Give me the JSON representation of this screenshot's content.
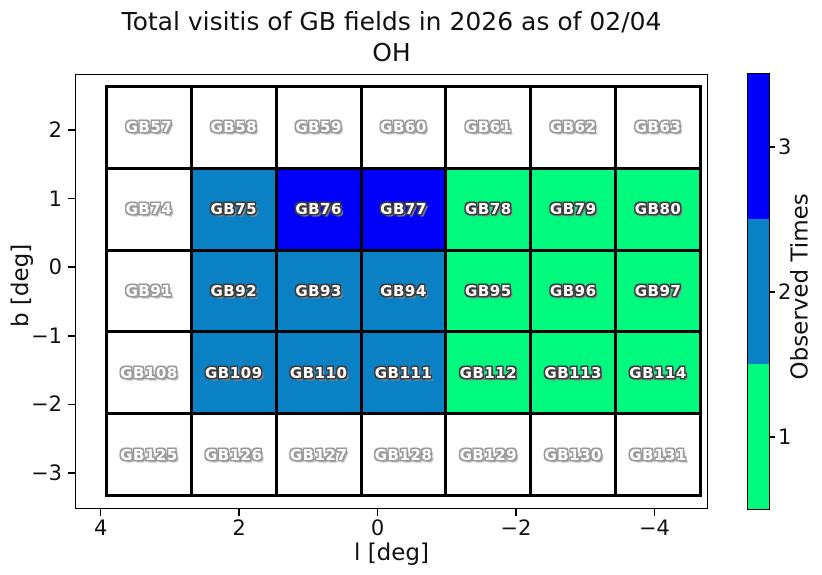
{
  "chart_data": {
    "type": "heatmap",
    "title_line1": "Total visitis of GB fields in 2026 as of 02/04",
    "title_line2": "OH",
    "xlabel": "l [deg]",
    "ylabel": "b [deg]",
    "x_ticks": [
      4,
      2,
      0,
      -2,
      -4
    ],
    "y_ticks": [
      2,
      1,
      0,
      -1,
      -2,
      -3
    ],
    "x_axis_reversed": true,
    "xlim": [
      4.3,
      -4.7
    ],
    "ylim": [
      -3.4,
      2.7
    ],
    "grid_on": false,
    "colorbar": {
      "label": "Observed Times",
      "ticks": [
        3,
        2,
        1
      ],
      "value_colors": {
        "0": "#ffffff",
        "1": "#00fa7e",
        "2": "#0a81c4",
        "3": "#0000fa"
      }
    },
    "grid_rows": [
      {
        "fields": [
          "GB57",
          "GB58",
          "GB59",
          "GB60",
          "GB61",
          "GB62",
          "GB63"
        ],
        "observed_times": [
          0,
          0,
          0,
          0,
          0,
          0,
          0
        ]
      },
      {
        "fields": [
          "GB74",
          "GB75",
          "GB76",
          "GB77",
          "GB78",
          "GB79",
          "GB80"
        ],
        "observed_times": [
          0,
          2,
          3,
          3,
          1,
          1,
          1
        ]
      },
      {
        "fields": [
          "GB91",
          "GB92",
          "GB93",
          "GB94",
          "GB95",
          "GB96",
          "GB97"
        ],
        "observed_times": [
          0,
          2,
          2,
          2,
          1,
          1,
          1
        ]
      },
      {
        "fields": [
          "GB108",
          "GB109",
          "GB110",
          "GB111",
          "GB112",
          "GB113",
          "GB114"
        ],
        "observed_times": [
          0,
          2,
          2,
          2,
          1,
          1,
          1
        ]
      },
      {
        "fields": [
          "GB125",
          "GB126",
          "GB127",
          "GB128",
          "GB129",
          "GB130",
          "GB131"
        ],
        "observed_times": [
          0,
          0,
          0,
          0,
          0,
          0,
          0
        ]
      }
    ]
  }
}
